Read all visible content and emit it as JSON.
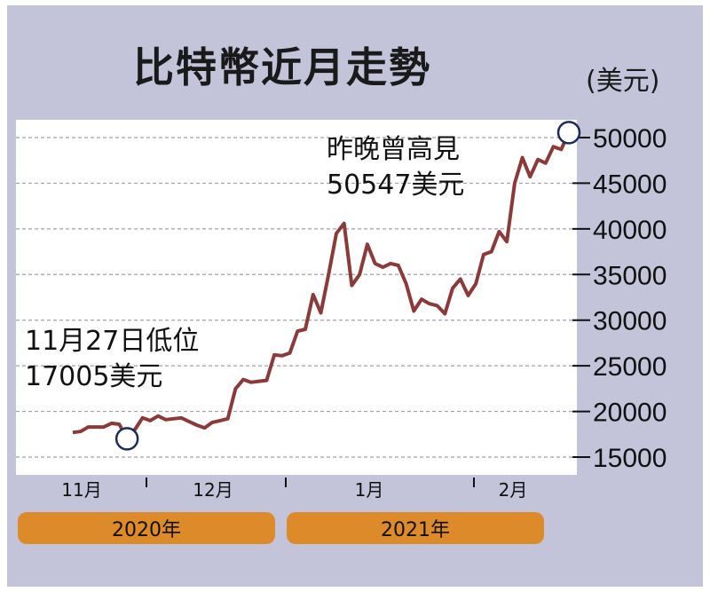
{
  "title": "比特幣近月走勢",
  "unit": "(美元)",
  "colors": {
    "panel": "#c3c3d9",
    "plot_bg": "#ffffff",
    "line": "#8b3a3a",
    "bar": "#dd8a2a",
    "grid": "#a0a0b0",
    "marker": "#1e2a5a"
  },
  "chart_data": {
    "type": "line",
    "title": "比特幣近月走勢",
    "ylabel": "(美元)",
    "ylim": [
      15000,
      50000
    ],
    "yticks": [
      "50000",
      "45000",
      "40000",
      "35000",
      "30000",
      "25000",
      "20000",
      "15000"
    ],
    "ytick_values": [
      50000,
      45000,
      40000,
      35000,
      30000,
      25000,
      20000,
      15000
    ],
    "grid": true,
    "months": [
      "11月",
      "12月",
      "1月",
      "2月"
    ],
    "years": [
      "2020年",
      "2021年"
    ],
    "series": [
      {
        "values": [
          17700,
          17800,
          18300,
          18300,
          18300,
          18700,
          18600,
          17005,
          18000,
          19300,
          19000,
          19500,
          19100,
          19200,
          19300,
          18900,
          18500,
          18200,
          18800,
          19000,
          19200,
          22500,
          23500,
          23200,
          23300,
          23400,
          26200,
          26100,
          26400,
          28800,
          29000,
          32800,
          30800,
          35000,
          39500,
          40600,
          33800,
          35000,
          38300,
          36200,
          35800,
          36200,
          36000,
          34000,
          31000,
          32300,
          31800,
          31600,
          30700,
          33500,
          34500,
          32700,
          34000,
          37200,
          37500,
          39700,
          38600,
          45000,
          47800,
          45700,
          47600,
          47200,
          49000,
          48700,
          50547
        ]
      }
    ],
    "annotations": [
      {
        "lines": [
          "昨晚曾高見",
          "50547美元"
        ],
        "value": 50547
      },
      {
        "lines": [
          "11月27日低位",
          "17005美元"
        ],
        "value": 17005
      }
    ]
  }
}
